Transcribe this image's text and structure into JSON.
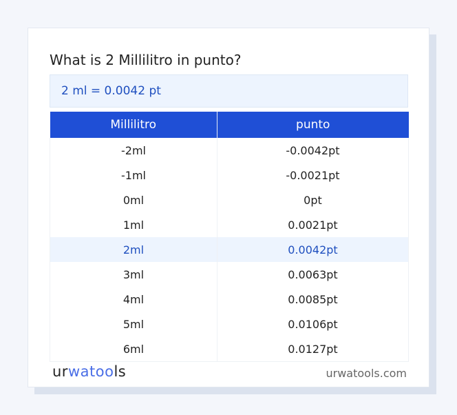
{
  "title": "What is 2 Millilitro in punto?",
  "result": "2 ml = 0.0042 pt",
  "table": {
    "headers": [
      "Millilitro",
      "punto"
    ],
    "rows": [
      [
        "-2ml",
        "-0.0042pt"
      ],
      [
        "-1ml",
        "-0.0021pt"
      ],
      [
        "0ml",
        "0pt"
      ],
      [
        "1ml",
        "0.0021pt"
      ],
      [
        "2ml",
        "0.0042pt"
      ],
      [
        "3ml",
        "0.0063pt"
      ],
      [
        "4ml",
        "0.0085pt"
      ],
      [
        "5ml",
        "0.0106pt"
      ],
      [
        "6ml",
        "0.0127pt"
      ]
    ],
    "highlighted_row": 4
  },
  "footer": {
    "logo": {
      "part1": "ur",
      "part2": "wa",
      "part3": "too",
      "part4": "ls"
    },
    "site": "urwatools.com"
  },
  "colors": {
    "accent": "#1f4fd6",
    "highlight_bg": "#edf4fe",
    "highlight_text": "#1f4fbf"
  }
}
